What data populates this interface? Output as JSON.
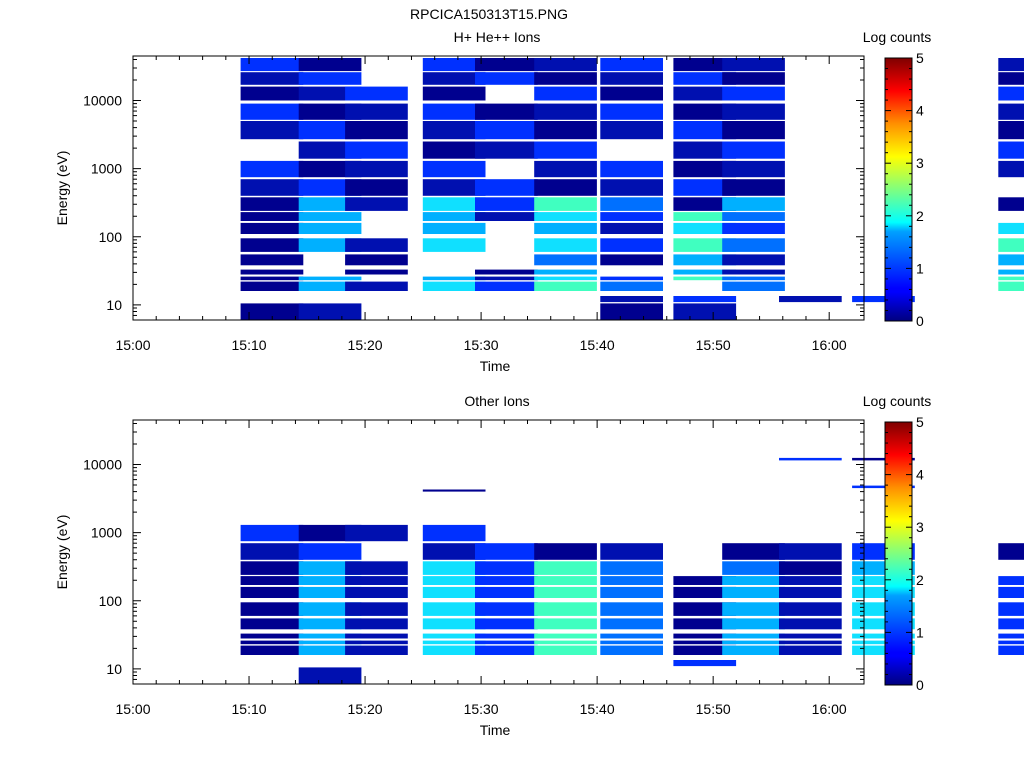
{
  "figure_title": "RPCICA150313T15.PNG",
  "chart_data": [
    {
      "type": "heatmap",
      "title": "H+ He++ Ions",
      "xlabel": "Time",
      "ylabel": "Energy (eV)",
      "colorbar_label": "Log counts",
      "x_ticks": [
        "15:00",
        "15:10",
        "15:20",
        "15:30",
        "15:40",
        "15:50",
        "16:00"
      ],
      "x_range_minutes": [
        0,
        63
      ],
      "y_scale": "log",
      "y_ticks": [
        10,
        100,
        1000,
        "10000"
      ],
      "y_range_ev": [
        6,
        45000
      ],
      "colorbar_ticks": [
        0,
        1,
        2,
        3,
        4,
        5
      ],
      "colorbar_range": [
        0,
        5
      ],
      "energy_bins": [
        {
          "e_lo": 6.0,
          "e_hi": 10.5,
          "cols": [
            0,
            1,
            6,
            7
          ]
        },
        {
          "e_lo": 11,
          "e_hi": 13.5,
          "cols": [
            6,
            7,
            9,
            10
          ]
        },
        {
          "e_lo": 16,
          "e_hi": 22,
          "cols": [
            0,
            1,
            2,
            3,
            4,
            5,
            6,
            8,
            11
          ]
        },
        {
          "e_lo": 23,
          "e_hi": 26,
          "cols": [
            0,
            1,
            3,
            4,
            5,
            6,
            7,
            8,
            11
          ]
        },
        {
          "e_lo": 28,
          "e_hi": 33,
          "cols": [
            0,
            2,
            4,
            5,
            7,
            8,
            11
          ]
        },
        {
          "e_lo": 38,
          "e_hi": 55,
          "cols": [
            0,
            2,
            5,
            6,
            7,
            8,
            11
          ]
        },
        {
          "e_lo": 60,
          "e_hi": 95,
          "cols": [
            0,
            1,
            2,
            3,
            5,
            6,
            7,
            8,
            11
          ]
        },
        {
          "e_lo": 110,
          "e_hi": 160,
          "cols": [
            0,
            1,
            3,
            5,
            6,
            7,
            8,
            11
          ]
        },
        {
          "e_lo": 170,
          "e_hi": 230,
          "cols": [
            0,
            1,
            3,
            4,
            5,
            6,
            7,
            8
          ]
        },
        {
          "e_lo": 240,
          "e_hi": 380,
          "cols": [
            0,
            1,
            2,
            3,
            4,
            5,
            6,
            7,
            8,
            11
          ]
        },
        {
          "e_lo": 400,
          "e_hi": 700,
          "cols": [
            0,
            1,
            2,
            3,
            4,
            5,
            6,
            7,
            8
          ]
        },
        {
          "e_lo": 750,
          "e_hi": 1300,
          "cols": [
            0,
            1,
            2,
            3,
            5,
            6,
            7,
            8,
            11
          ]
        },
        {
          "e_lo": 1400,
          "e_hi": 2500,
          "cols": [
            1,
            2,
            3,
            4,
            5,
            7,
            8,
            11
          ]
        },
        {
          "e_lo": 2700,
          "e_hi": 5000,
          "cols": [
            0,
            1,
            2,
            3,
            4,
            5,
            6,
            7,
            8,
            11
          ]
        },
        {
          "e_lo": 5200,
          "e_hi": 9000,
          "cols": [
            0,
            1,
            2,
            3,
            4,
            5,
            6,
            7,
            8,
            11
          ]
        },
        {
          "e_lo": 10000,
          "e_hi": 16000,
          "cols": [
            0,
            1,
            2,
            3,
            5,
            6,
            7,
            8,
            11
          ]
        },
        {
          "e_lo": 17000,
          "e_hi": 26000,
          "cols": [
            0,
            1,
            3,
            4,
            5,
            6,
            7,
            8,
            11
          ]
        },
        {
          "e_lo": 27000,
          "e_hi": 42000,
          "cols": [
            0,
            1,
            3,
            4,
            5,
            6,
            7,
            8,
            11
          ]
        }
      ]
    },
    {
      "type": "heatmap",
      "title": "Other Ions",
      "xlabel": "Time",
      "ylabel": "Energy (eV)",
      "colorbar_label": "Log counts",
      "x_ticks": [
        "15:00",
        "15:10",
        "15:20",
        "15:30",
        "15:40",
        "15:50",
        "16:00"
      ],
      "x_range_minutes": [
        0,
        63
      ],
      "y_scale": "log",
      "y_ticks": [
        10,
        100,
        1000,
        "10000"
      ],
      "y_range_ev": [
        6,
        45000
      ],
      "colorbar_ticks": [
        0,
        1,
        2,
        3,
        4,
        5
      ],
      "colorbar_range": [
        0,
        5
      ],
      "energy_bins": [
        {
          "e_lo": 6.0,
          "e_hi": 10.5,
          "cols": [
            1
          ]
        },
        {
          "e_lo": 11,
          "e_hi": 13.5,
          "cols": [
            7
          ]
        },
        {
          "e_lo": 16,
          "e_hi": 22,
          "cols": [
            0,
            1,
            2,
            3,
            4,
            5,
            6,
            7,
            8,
            9,
            10,
            11
          ]
        },
        {
          "e_lo": 23,
          "e_hi": 26,
          "cols": [
            0,
            1,
            2,
            3,
            4,
            5,
            6,
            7,
            8,
            9,
            10,
            11
          ]
        },
        {
          "e_lo": 28,
          "e_hi": 33,
          "cols": [
            0,
            1,
            2,
            3,
            4,
            5,
            6,
            7,
            8,
            9,
            10,
            11
          ]
        },
        {
          "e_lo": 38,
          "e_hi": 55,
          "cols": [
            0,
            1,
            2,
            3,
            4,
            5,
            6,
            7,
            8,
            9,
            10,
            11
          ]
        },
        {
          "e_lo": 60,
          "e_hi": 95,
          "cols": [
            0,
            1,
            2,
            3,
            4,
            5,
            6,
            7,
            8,
            9,
            10,
            11
          ]
        },
        {
          "e_lo": 110,
          "e_hi": 160,
          "cols": [
            0,
            1,
            2,
            3,
            4,
            5,
            6,
            7,
            8,
            9,
            10,
            11
          ]
        },
        {
          "e_lo": 170,
          "e_hi": 230,
          "cols": [
            0,
            1,
            2,
            3,
            4,
            5,
            6,
            7,
            8,
            9,
            10,
            11
          ]
        },
        {
          "e_lo": 240,
          "e_hi": 380,
          "cols": [
            0,
            1,
            2,
            3,
            4,
            5,
            6,
            8,
            9,
            10
          ]
        },
        {
          "e_lo": 400,
          "e_hi": 700,
          "cols": [
            0,
            1,
            3,
            4,
            5,
            6,
            8,
            9,
            10,
            11
          ]
        },
        {
          "e_lo": 750,
          "e_hi": 1300,
          "cols": [
            0,
            1,
            2,
            3
          ]
        },
        {
          "e_lo": 4000,
          "e_hi": 4300,
          "cols": [
            3
          ]
        },
        {
          "e_lo": 4500,
          "e_hi": 4900,
          "cols": [
            10
          ]
        },
        {
          "e_lo": 11500,
          "e_hi": 12500,
          "cols": [
            9,
            10
          ]
        }
      ]
    }
  ]
}
